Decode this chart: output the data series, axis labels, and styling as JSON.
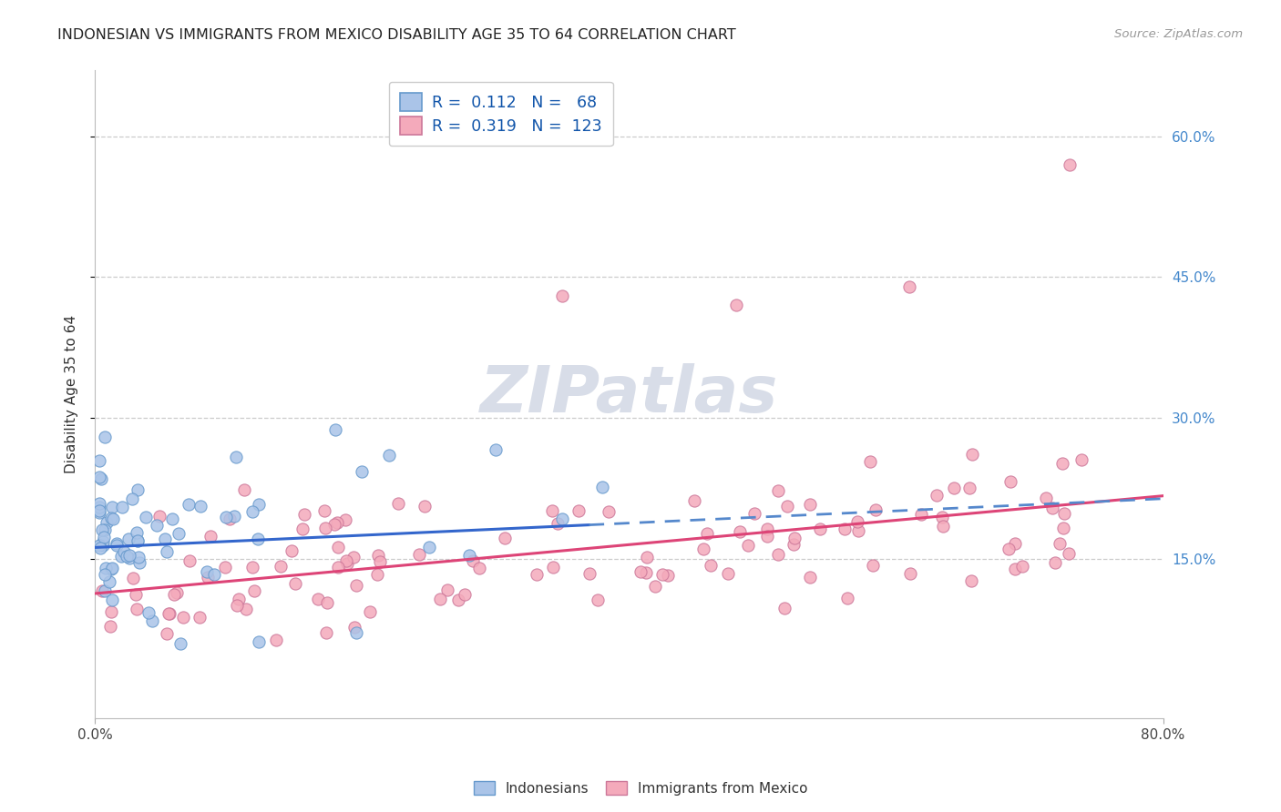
{
  "title": "INDONESIAN VS IMMIGRANTS FROM MEXICO DISABILITY AGE 35 TO 64 CORRELATION CHART",
  "source": "Source: ZipAtlas.com",
  "ylabel": "Disability Age 35 to 64",
  "xlim": [
    0.0,
    0.8
  ],
  "ylim": [
    -0.02,
    0.67
  ],
  "ytick_positions": [
    0.15,
    0.3,
    0.45,
    0.6
  ],
  "ytick_labels": [
    "15.0%",
    "30.0%",
    "45.0%",
    "60.0%"
  ],
  "indonesian_color": "#aac4e8",
  "indonesian_edge": "#6699cc",
  "mexican_color": "#f4aabb",
  "mexican_edge": "#cc7799",
  "trend_blue_solid": "#3366cc",
  "trend_blue_dash": "#5588cc",
  "trend_pink": "#dd4477",
  "watermark_color": "#d8dde8",
  "indonesian_R": 0.112,
  "indonesian_N": 68,
  "mexican_R": 0.319,
  "mexican_N": 123
}
